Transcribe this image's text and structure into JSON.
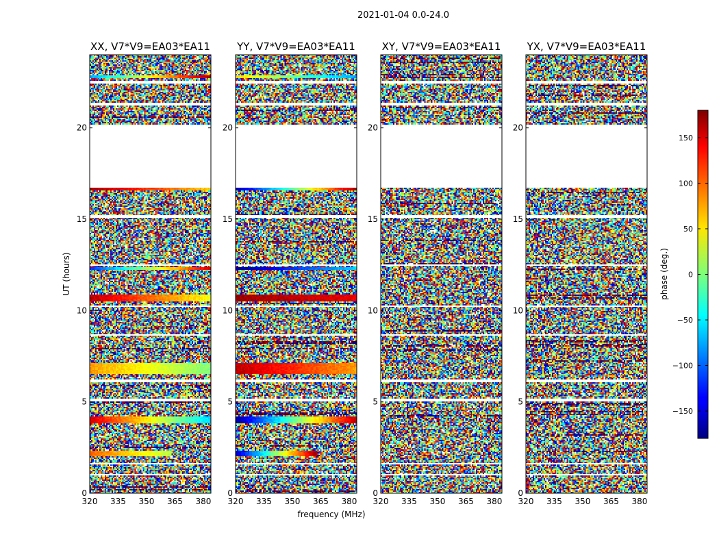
{
  "chart_data": {
    "type": "heatmap",
    "suptitle": "2021-01-04 0.0-24.0",
    "xlabel": "frequency (MHz)",
    "ylabel": "UT (hours)",
    "xlim": [
      320,
      384
    ],
    "ylim": [
      0,
      24
    ],
    "xticks": [
      "320",
      "335",
      "350",
      "365",
      "380"
    ],
    "xtick_values": [
      320,
      335,
      350,
      365,
      380
    ],
    "yticks": [
      "0",
      "5",
      "10",
      "15",
      "20"
    ],
    "ytick_values": [
      0,
      5,
      10,
      15,
      20
    ],
    "colorbar": {
      "label": "phase (deg.)",
      "range": [
        -180,
        180
      ],
      "ticks": [
        "150",
        "100",
        "50",
        "0",
        "−50",
        "−100",
        "−150"
      ],
      "tick_values": [
        150,
        100,
        50,
        0,
        -50,
        -100,
        -150
      ],
      "colormap": "jet"
    },
    "panels": [
      {
        "name": "XX",
        "title": "XX, V7*V9=EA03*EA11"
      },
      {
        "name": "YY",
        "title": "YY, V7*V9=EA03*EA11"
      },
      {
        "name": "XY",
        "title": "XY, V7*V9=EA03*EA11"
      },
      {
        "name": "YX",
        "title": "YX, V7*V9=EA03*EA11"
      }
    ],
    "flagged_ut_ranges": [
      [
        16.7,
        20.2
      ],
      [
        21.2,
        21.4
      ],
      [
        22.4,
        22.6
      ],
      [
        0.95,
        1.05
      ],
      [
        1.55,
        1.65
      ],
      [
        5.0,
        5.2
      ],
      [
        6.1,
        6.2
      ],
      [
        8.6,
        8.7
      ],
      [
        10.2,
        10.3
      ],
      [
        12.45,
        12.55
      ],
      [
        15.1,
        15.2
      ],
      [
        17.0,
        17.1
      ]
    ],
    "coherent_phase_bands": [
      {
        "panel": "XX",
        "ut": [
          2.0,
          2.3
        ],
        "freq_end": 363,
        "phase_start": 100,
        "phase_end": 20
      },
      {
        "panel": "XX",
        "ut": [
          3.8,
          4.2
        ],
        "freq_end": 384,
        "phase_start": 150,
        "phase_end": -60
      },
      {
        "panel": "XX",
        "ut": [
          6.5,
          7.1
        ],
        "freq_end": 384,
        "phase_start": 80,
        "phase_end": 0
      },
      {
        "panel": "XX",
        "ut": [
          10.5,
          10.9
        ],
        "freq_end": 384,
        "phase_start": 160,
        "phase_end": 40
      },
      {
        "panel": "XX",
        "ut": [
          12.2,
          12.4
        ],
        "freq_end": 384,
        "phase_start": -120,
        "phase_end": 150
      },
      {
        "panel": "XX",
        "ut": [
          16.6,
          16.75
        ],
        "freq_end": 384,
        "phase_start": 170,
        "phase_end": 60
      },
      {
        "panel": "XX",
        "ut": [
          22.7,
          22.9
        ],
        "freq_end": 384,
        "phase_start": -80,
        "phase_end": 170
      },
      {
        "panel": "YY",
        "ut": [
          2.0,
          2.3
        ],
        "freq_end": 363,
        "phase_start": -160,
        "phase_end": 170
      },
      {
        "panel": "YY",
        "ut": [
          3.8,
          4.2
        ],
        "freq_end": 384,
        "phase_start": -170,
        "phase_end": 160
      },
      {
        "panel": "YY",
        "ut": [
          6.5,
          7.1
        ],
        "freq_end": 384,
        "phase_start": 160,
        "phase_end": 80
      },
      {
        "panel": "YY",
        "ut": [
          10.5,
          10.9
        ],
        "freq_end": 384,
        "phase_start": 170,
        "phase_end": 140
      },
      {
        "panel": "YY",
        "ut": [
          12.2,
          12.4
        ],
        "freq_end": 384,
        "phase_start": -170,
        "phase_end": -60
      },
      {
        "panel": "YY",
        "ut": [
          16.6,
          16.75
        ],
        "freq_end": 384,
        "phase_start": -170,
        "phase_end": 170
      },
      {
        "panel": "YY",
        "ut": [
          22.7,
          22.9
        ],
        "freq_end": 384,
        "phase_start": 60,
        "phase_end": -80
      }
    ]
  }
}
